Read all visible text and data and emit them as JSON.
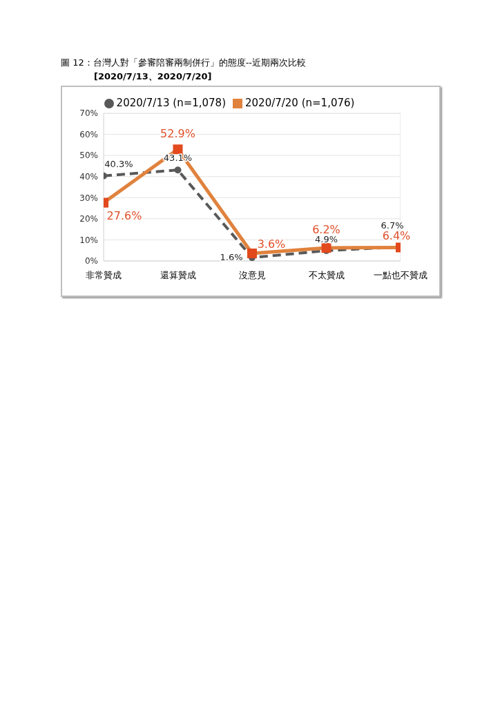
{
  "chart_data": {
    "type": "line",
    "title": "圖 12：台灣人對「參審陪審兩制併行」的態度--近期兩次比較",
    "subtitle": "[2020/7/13、2020/7/20]",
    "categories": [
      "非常贊成",
      "還算贊成",
      "沒意見",
      "不太贊成",
      "一點也不贊成"
    ],
    "series": [
      {
        "name": "2020/7/13 (n=1,078)",
        "color": "#595959",
        "values": [
          40.3,
          43.1,
          1.6,
          4.9,
          6.7
        ],
        "value_labels": [
          "40.3%",
          "43.1%",
          "1.6%",
          "4.9%",
          "6.7%"
        ],
        "marker": "circle",
        "line_style": "dashed"
      },
      {
        "name": "2020/7/20 (n=1,076)",
        "color": "#e0823d",
        "values": [
          27.6,
          52.9,
          3.6,
          6.2,
          6.4
        ],
        "value_labels": [
          "27.6%",
          "52.9%",
          "3.6%",
          "6.2%",
          "6.4%"
        ],
        "marker": "square",
        "line_style": "solid"
      }
    ],
    "ylim": [
      0,
      70
    ],
    "yticks": [
      {
        "value": 0,
        "label": "0%"
      },
      {
        "value": 10,
        "label": "10%"
      },
      {
        "value": 20,
        "label": "20%"
      },
      {
        "value": 30,
        "label": "30%"
      },
      {
        "value": 40,
        "label": "40%"
      },
      {
        "value": 50,
        "label": "50%"
      },
      {
        "value": 60,
        "label": "60%"
      },
      {
        "value": 70,
        "label": "70%"
      }
    ],
    "grid": "y",
    "legend": "top"
  }
}
